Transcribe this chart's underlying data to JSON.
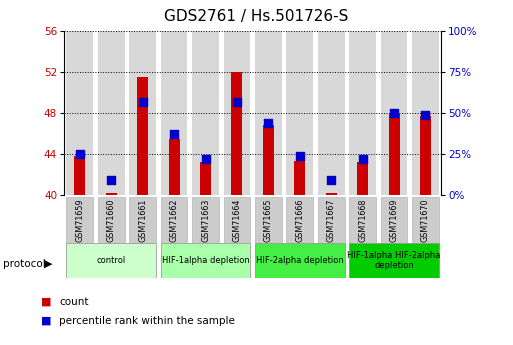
{
  "title": "GDS2761 / Hs.501726-S",
  "samples": [
    "GSM71659",
    "GSM71660",
    "GSM71661",
    "GSM71662",
    "GSM71663",
    "GSM71664",
    "GSM71665",
    "GSM71666",
    "GSM71667",
    "GSM71668",
    "GSM71669",
    "GSM71670"
  ],
  "counts": [
    43.8,
    40.2,
    51.5,
    45.5,
    43.2,
    52.0,
    46.8,
    43.3,
    40.2,
    43.2,
    48.0,
    47.7
  ],
  "percentile_ranks_raw": [
    25,
    9,
    57,
    37,
    22,
    57,
    44,
    24,
    9,
    22,
    50,
    49
  ],
  "ylim_left": [
    40,
    56
  ],
  "ylim_right": [
    0,
    100
  ],
  "yticks_left": [
    40,
    44,
    48,
    52,
    56
  ],
  "yticks_right": [
    0,
    25,
    50,
    75,
    100
  ],
  "ytick_labels_right": [
    "0%",
    "25%",
    "50%",
    "75%",
    "100%"
  ],
  "bar_color": "#cc0000",
  "dot_color": "#0000cc",
  "bar_width": 0.35,
  "dot_size": 35,
  "grid_color": "#000000",
  "protocol_groups": [
    {
      "label": "control",
      "start": 0,
      "end": 2,
      "color": "#ccffcc"
    },
    {
      "label": "HIF-1alpha depletion",
      "start": 3,
      "end": 5,
      "color": "#aaffaa"
    },
    {
      "label": "HIF-2alpha depletion",
      "start": 6,
      "end": 8,
      "color": "#44ee44"
    },
    {
      "label": "HIF-1alpha HIF-2alpha\ndepletion",
      "start": 9,
      "end": 11,
      "color": "#00cc00"
    }
  ],
  "xlabel_protocol": "protocol",
  "legend_count": "count",
  "legend_pct": "percentile rank within the sample",
  "bar_bg_color": "#d8d8d8",
  "title_fontsize": 11,
  "tick_fontsize": 7.5
}
